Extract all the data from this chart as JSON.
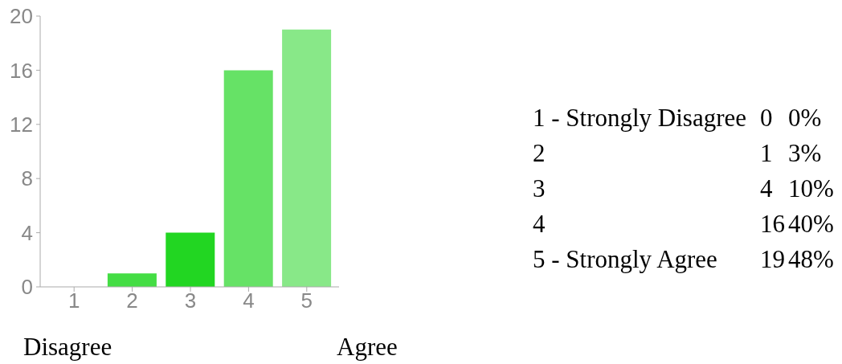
{
  "chart_data": {
    "type": "bar",
    "categories": [
      "1",
      "2",
      "3",
      "4",
      "5"
    ],
    "values": [
      0,
      1,
      4,
      16,
      19
    ],
    "colors": [
      "#2ccf2c",
      "#44dd44",
      "#22d622",
      "#66e266",
      "#88e888"
    ],
    "ylim": [
      0,
      20
    ],
    "yticks": [
      0,
      4,
      8,
      12,
      16,
      20
    ],
    "annotations": [
      "1 - Strongly Disagree",
      "0",
      "0%",
      "2",
      "1",
      "3%",
      "3",
      "4",
      "10%",
      "4",
      "16",
      "40%",
      "5 - Strongly Agree",
      "19",
      "48%",
      "Disagree",
      "Agree"
    ]
  }
}
